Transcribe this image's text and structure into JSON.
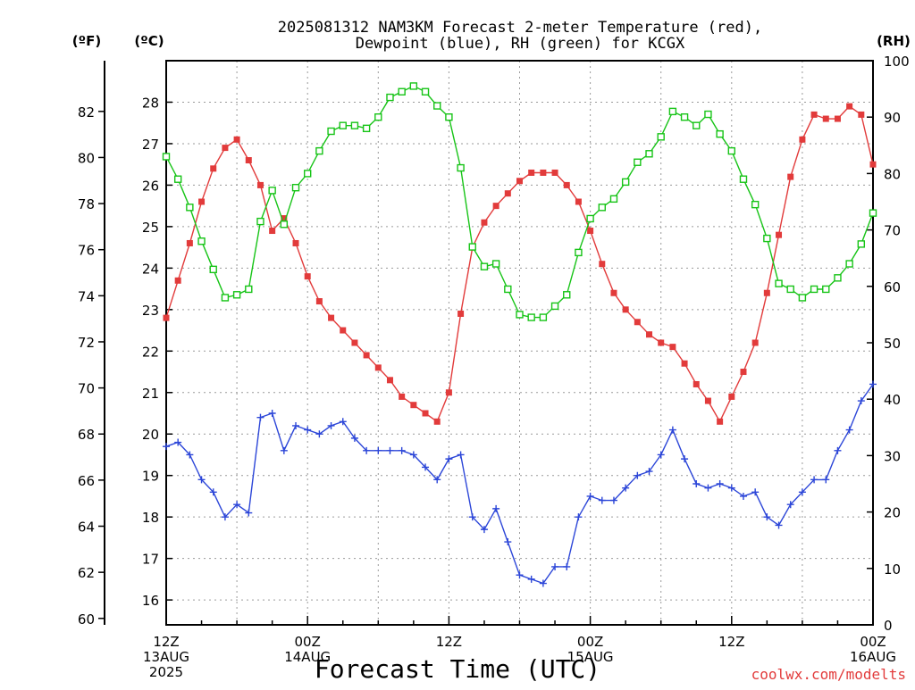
{
  "chart_data": {
    "type": "line",
    "title_line1": "2025081312 NAM3KM Forecast 2-meter Temperature (red),",
    "title_line2": "Dewpoint (blue), RH (green) for KCGX",
    "xlabel": "Forecast Time (UTC)",
    "credit": "coolwx.com/modelts",
    "units": {
      "f": "(ºF)",
      "c": "(ºC)",
      "rh": "(RH)"
    },
    "x_hours_range": [
      0,
      60
    ],
    "grid": true,
    "x_ticks": [
      {
        "h": 0,
        "line1": "12Z",
        "line2": "13AUG",
        "line3": "2025"
      },
      {
        "h": 12,
        "line1": "00Z",
        "line2": "14AUG",
        "line3": ""
      },
      {
        "h": 24,
        "line1": "12Z",
        "line2": "",
        "line3": ""
      },
      {
        "h": 36,
        "line1": "00Z",
        "line2": "15AUG",
        "line3": ""
      },
      {
        "h": 48,
        "line1": "12Z",
        "line2": "",
        "line3": ""
      },
      {
        "h": 60,
        "line1": "00Z",
        "line2": "16AUG",
        "line3": ""
      }
    ],
    "axes": {
      "celsius": {
        "range": [
          15.4,
          29.0
        ],
        "ticks": [
          16,
          17,
          18,
          19,
          20,
          21,
          22,
          23,
          24,
          25,
          26,
          27,
          28
        ]
      },
      "fahrenheit": {
        "range": [
          59.72,
          84.2
        ],
        "ticks": [
          60,
          62,
          64,
          66,
          68,
          70,
          72,
          74,
          76,
          78,
          80,
          82
        ]
      },
      "rh": {
        "range": [
          0,
          100
        ],
        "ticks": [
          0,
          10,
          20,
          30,
          40,
          50,
          60,
          70,
          80,
          90,
          100
        ]
      }
    },
    "x_hours": [
      0,
      1,
      2,
      3,
      4,
      5,
      6,
      7,
      8,
      9,
      10,
      11,
      12,
      13,
      14,
      15,
      16,
      17,
      18,
      19,
      20,
      21,
      22,
      23,
      24,
      25,
      26,
      27,
      28,
      29,
      30,
      31,
      32,
      33,
      34,
      35,
      36,
      37,
      38,
      39,
      40,
      41,
      42,
      43,
      44,
      45,
      46,
      47,
      48,
      49,
      50,
      51,
      52,
      53,
      54,
      55,
      56,
      57,
      58,
      59,
      60
    ],
    "series": [
      {
        "name": "Temperature",
        "unit": "C",
        "color": "#e23b3b",
        "marker": "filled-square",
        "values": [
          22.8,
          23.7,
          24.6,
          25.6,
          26.4,
          26.9,
          27.1,
          26.6,
          26.0,
          24.9,
          25.2,
          24.6,
          23.8,
          23.2,
          22.8,
          22.5,
          22.2,
          21.9,
          21.6,
          21.3,
          20.9,
          20.7,
          20.5,
          20.3,
          21.0,
          22.9,
          24.5,
          25.1,
          25.5,
          25.8,
          26.1,
          26.3,
          26.3,
          26.3,
          26.0,
          25.6,
          24.9,
          24.1,
          23.4,
          23.0,
          22.7,
          22.4,
          22.2,
          22.1,
          21.7,
          21.2,
          20.8,
          20.3,
          20.9,
          21.5,
          22.2,
          23.4,
          24.8,
          26.2,
          27.1,
          27.7,
          27.6,
          27.6,
          27.9,
          27.7,
          26.5
        ]
      },
      {
        "name": "Dewpoint",
        "unit": "C",
        "color": "#2c46d8",
        "marker": "plus",
        "values": [
          19.7,
          19.8,
          19.5,
          18.9,
          18.6,
          18.0,
          18.3,
          18.1,
          20.4,
          20.5,
          19.6,
          20.2,
          20.1,
          20.0,
          20.2,
          20.3,
          19.9,
          19.6,
          19.6,
          19.6,
          19.6,
          19.5,
          19.2,
          18.9,
          19.4,
          19.5,
          18.0,
          17.7,
          18.2,
          17.4,
          16.6,
          16.5,
          16.4,
          16.8,
          16.8,
          18.0,
          18.5,
          18.4,
          18.4,
          18.7,
          19.0,
          19.1,
          19.5,
          20.1,
          19.4,
          18.8,
          18.7,
          18.8,
          18.7,
          18.5,
          18.6,
          18.0,
          17.8,
          18.3,
          18.6,
          18.9,
          18.9,
          19.6,
          20.1,
          20.8,
          21.2
        ]
      },
      {
        "name": "RH",
        "unit": "%",
        "color": "#17c417",
        "marker": "open-square",
        "values": [
          83,
          79,
          74,
          68,
          63,
          58,
          58.5,
          59.5,
          71.5,
          77,
          71,
          77.5,
          80,
          84,
          87.5,
          88.5,
          88.5,
          88,
          90,
          93.5,
          94.5,
          95.5,
          94.5,
          92,
          90,
          81,
          67,
          63.5,
          64,
          59.5,
          55,
          54.5,
          54.5,
          56.5,
          58.5,
          66,
          72,
          74,
          75.5,
          78.5,
          82,
          83.5,
          86.5,
          91,
          90,
          88.5,
          90.5,
          87,
          84,
          79,
          74.5,
          68.5,
          60.5,
          59.5,
          58,
          59.5,
          59.5,
          61.5,
          64,
          67.5,
          73
        ]
      }
    ]
  }
}
